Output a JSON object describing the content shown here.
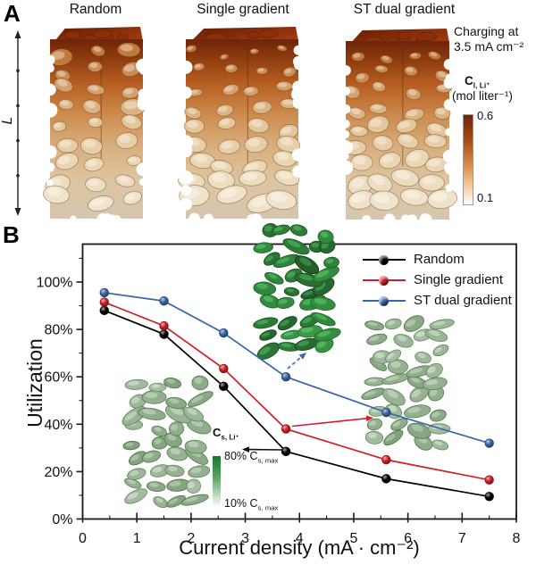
{
  "figure": {
    "panel_a": {
      "label": "A",
      "column_labels": [
        "Random",
        "Single gradient",
        "ST dual gradient"
      ],
      "length_axis_label": "L",
      "annotation": {
        "line1": "Charging at",
        "line2": "3.5 mA cm⁻²"
      },
      "colorbar": {
        "quantity_base": "C",
        "quantity_sub": "l, Li⁺",
        "unit": "(mol liter⁻¹)",
        "max_label": "0.6",
        "min_label": "0.1",
        "color_top": "#6e2408",
        "color_bottom": "#ffffff"
      }
    },
    "panel_b": {
      "label": "B",
      "inset_colorbar": {
        "quantity_base": "C",
        "quantity_sub": "s, Li⁺",
        "max_prefix": "80% C",
        "max_sub": "s, max",
        "min_prefix": "10% C",
        "min_sub": "s, max",
        "color_top": "#137a2a",
        "color_bottom": "#ffffff"
      }
    }
  },
  "chart_data": {
    "type": "line",
    "title": "",
    "xlabel": "Current density (mA · cm⁻²)",
    "ylabel": "Utilization",
    "x": [
      0.4,
      1.5,
      2.6,
      3.75,
      5.6,
      7.5
    ],
    "xlim": [
      0,
      8
    ],
    "ylim_percent": [
      0,
      116
    ],
    "xticks": [
      0,
      1,
      2,
      3,
      4,
      5,
      6,
      7,
      8
    ],
    "yticks": [
      {
        "value": 0,
        "label": "0%"
      },
      {
        "value": 20,
        "label": "20%"
      },
      {
        "value": 40,
        "label": "40%"
      },
      {
        "value": 60,
        "label": "60%"
      },
      {
        "value": 80,
        "label": "80%"
      },
      {
        "value": 100,
        "label": "100%"
      }
    ],
    "grid": false,
    "legend_position": "top-right",
    "series": [
      {
        "name": "Random",
        "color": "#000000",
        "values_percent": [
          88,
          78,
          56,
          28.5,
          17,
          9.5
        ]
      },
      {
        "name": "Single gradient",
        "color": "#d01f27",
        "values_percent": [
          91.5,
          81.5,
          63.5,
          38,
          25,
          16.5
        ]
      },
      {
        "name": "ST dual gradient",
        "color": "#3a67a8",
        "values_percent": [
          95.5,
          92,
          78.5,
          60,
          45,
          32
        ]
      }
    ]
  }
}
